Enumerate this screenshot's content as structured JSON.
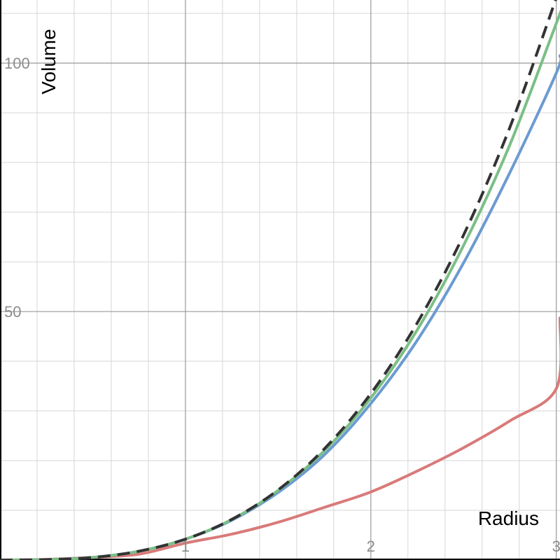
{
  "chart_data": {
    "type": "line",
    "title": "",
    "xlabel": "Radius",
    "ylabel": "Volume",
    "xlim": [
      0,
      3.02
    ],
    "ylim": [
      0,
      112.7
    ],
    "x_minor_step": 0.2,
    "y_minor_step": 10,
    "x_ticks": [
      1,
      2,
      3
    ],
    "y_ticks": [
      50,
      100
    ],
    "grid": true,
    "series": [
      {
        "key": "red",
        "color": "#d97a7a",
        "dashed": false,
        "x": [
          0,
          0.25,
          0.5,
          0.75,
          1,
          1.25,
          1.5,
          1.75,
          2,
          2.25,
          2.5,
          2.75,
          3,
          3.02
        ],
        "y": [
          0,
          0.13,
          0.52,
          1.18,
          3.4,
          5.2,
          7.6,
          10.6,
          13.7,
          17.9,
          22.6,
          28.0,
          34.5,
          48.7
        ]
      },
      {
        "key": "blue",
        "color": "#6b9bd1",
        "dashed": false,
        "x": [
          0,
          0.25,
          0.5,
          0.75,
          1,
          1.25,
          1.5,
          1.75,
          2,
          2.25,
          2.5,
          2.75,
          3,
          3.02
        ],
        "y": [
          0,
          0.065,
          0.52,
          1.76,
          4.19,
          8.0,
          13.6,
          21.2,
          31.5,
          44.2,
          59.8,
          78.0,
          98.0,
          101.5
        ]
      },
      {
        "key": "green",
        "color": "#7bbf86",
        "dashed": false,
        "x": [
          0,
          0.25,
          0.5,
          0.75,
          1,
          1.25,
          1.5,
          1.75,
          2,
          2.25,
          2.5,
          2.75,
          3,
          3.02
        ],
        "y": [
          0,
          0.065,
          0.52,
          1.76,
          4.19,
          8.15,
          14.0,
          22.0,
          32.6,
          46.3,
          63.3,
          83.6,
          108.0,
          110.0
        ]
      },
      {
        "key": "black",
        "color": "#333333",
        "dashed": true,
        "x": [
          0,
          0.25,
          0.5,
          0.75,
          1,
          1.25,
          1.5,
          1.75,
          2,
          2.25,
          2.5,
          2.75,
          3,
          3.02
        ],
        "y": [
          0,
          0.065,
          0.52,
          1.77,
          4.19,
          8.18,
          14.1,
          22.4,
          33.5,
          47.7,
          65.4,
          87.1,
          113.1,
          115.4
        ]
      }
    ]
  }
}
